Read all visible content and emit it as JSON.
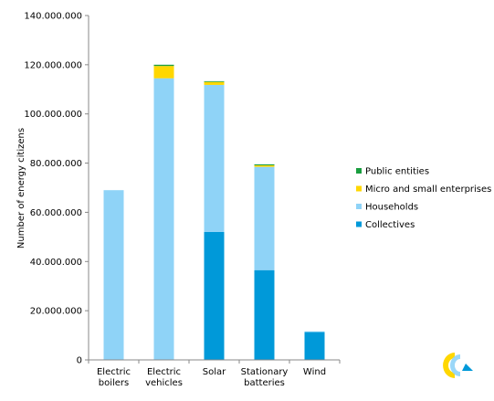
{
  "chart_data": {
    "type": "bar",
    "stacked": true,
    "categories": [
      [
        "Electric",
        "boilers"
      ],
      [
        "Electric",
        "vehicles"
      ],
      [
        "Solar"
      ],
      [
        "Stationary",
        "batteries"
      ],
      [
        "Wind"
      ]
    ],
    "series": [
      {
        "name": "Collectives",
        "color": "#0099d9",
        "values": [
          0,
          0,
          52000000,
          36500000,
          11300000
        ]
      },
      {
        "name": "Households",
        "color": "#8fd3f7",
        "values": [
          69000000,
          114500000,
          59800000,
          42000000,
          300000
        ]
      },
      {
        "name": "Micro and small enterprises",
        "color": "#ffd700",
        "values": [
          0,
          5000000,
          1200000,
          600000,
          0
        ]
      },
      {
        "name": "Public entities",
        "color": "#1a9e3f",
        "values": [
          0,
          500000,
          300000,
          400000,
          0
        ]
      }
    ],
    "legend_order": [
      "Public entities",
      "Micro and small enterprises",
      "Households",
      "Collectives"
    ],
    "legend_position": "right",
    "ylabel": "Number of energy citizens",
    "ylim": [
      0,
      140000000
    ],
    "ytick_step": 20000000,
    "ytick_labels": [
      "0",
      "20.000.000",
      "40.000.000",
      "60.000.000",
      "80.000.000",
      "100.000.000",
      "120.000.000",
      "140.000.000"
    ],
    "grid": false
  },
  "logo": {
    "name": "coalition-logo-icon",
    "colors": [
      "#ffd700",
      "#8fd3f7",
      "#0099d9"
    ]
  }
}
